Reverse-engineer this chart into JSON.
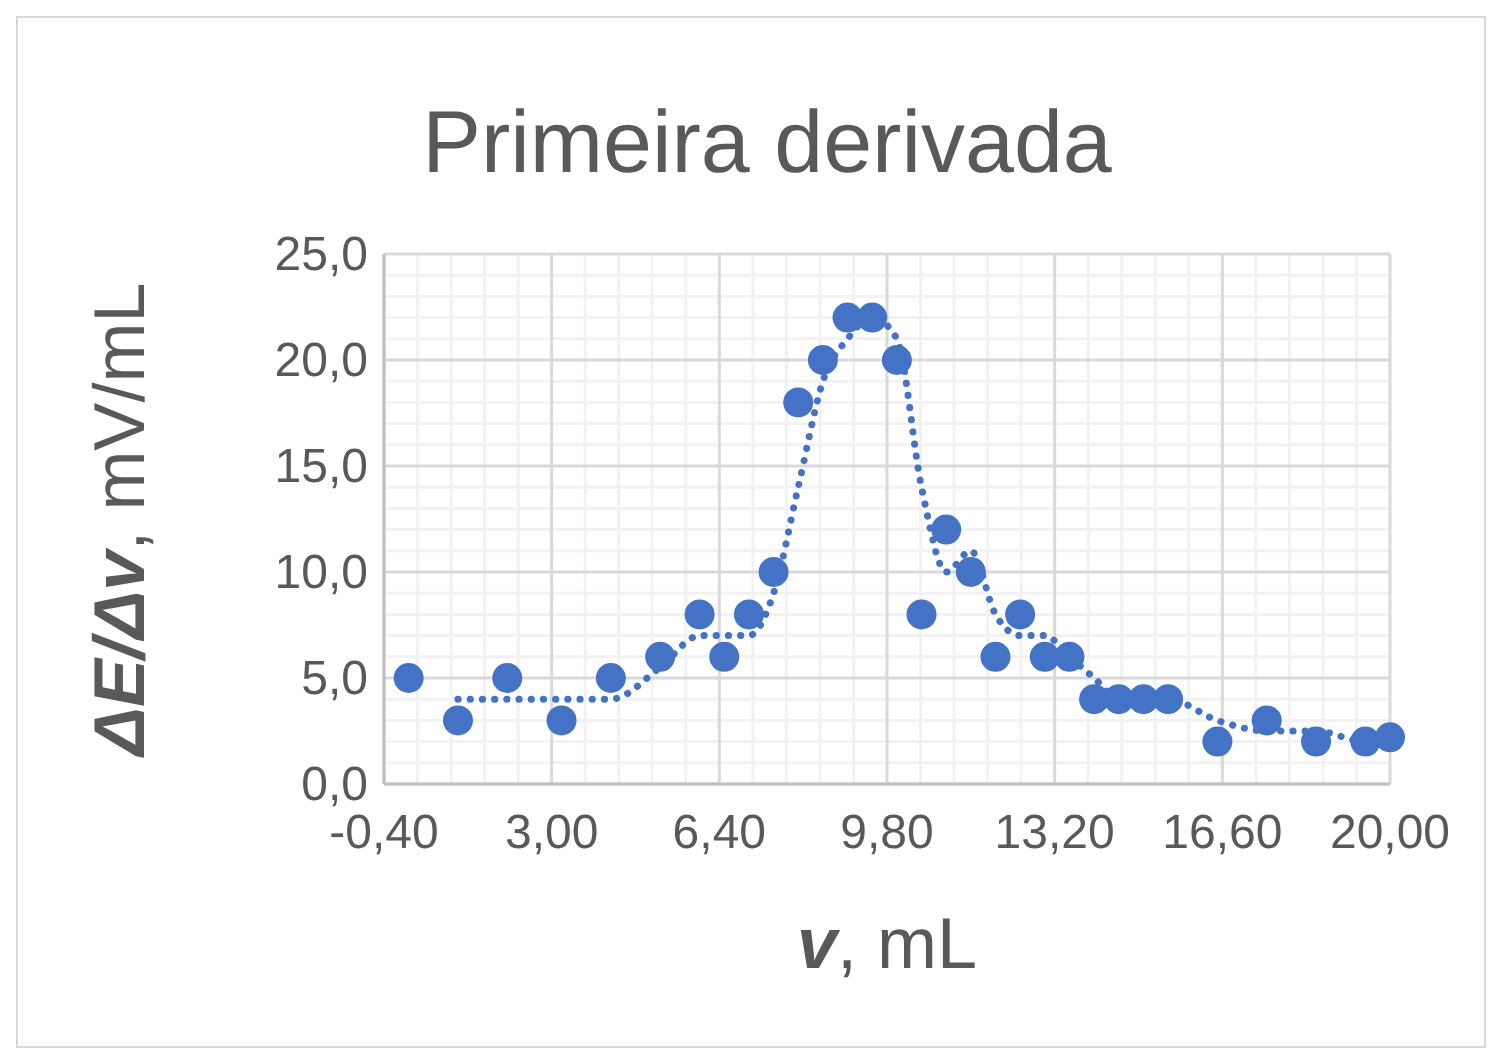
{
  "chart_data": {
    "type": "scatter",
    "title": "Primeira derivada",
    "xlabel": "v, mL",
    "ylabel": "ΔE/Δv, mV/mL",
    "xlim": [
      -0.4,
      20
    ],
    "xticks": [
      {
        "value": -0.4,
        "label": "-0,40"
      },
      {
        "value": 3,
        "label": "3,00"
      },
      {
        "value": 6.4,
        "label": "6,40"
      },
      {
        "value": 9.8,
        "label": "9,80"
      },
      {
        "value": 13.2,
        "label": "13,20"
      },
      {
        "value": 16.6,
        "label": "16,60"
      },
      {
        "value": 20,
        "label": "20,00"
      }
    ],
    "ylim": [
      0,
      25
    ],
    "yticks": [
      {
        "value": 0,
        "label": "0,0"
      },
      {
        "value": 5,
        "label": "5,0"
      },
      {
        "value": 10,
        "label": "10,0"
      },
      {
        "value": 15,
        "label": "15,0"
      },
      {
        "value": 20,
        "label": "20,0"
      },
      {
        "value": 25,
        "label": "25,0"
      }
    ],
    "grid": true,
    "series": [
      {
        "marker": "circle",
        "color": "#4472c4",
        "x": [
          0.1,
          1.1,
          2.1,
          3.2,
          4.2,
          5.2,
          6,
          6.5,
          7,
          7.5,
          8,
          8.5,
          9,
          9.5,
          10,
          10.5,
          11,
          11.5,
          12,
          12.5,
          13,
          13.5,
          14,
          14.5,
          15,
          15.5,
          16.5,
          17.5,
          18.5,
          19.5,
          20
        ],
        "values": [
          5,
          3,
          5,
          3,
          5,
          6,
          8,
          6,
          8,
          10,
          18,
          20,
          22,
          22,
          20,
          8,
          12,
          10,
          6,
          8,
          6,
          6,
          4,
          4,
          4,
          4,
          2,
          3,
          2,
          2,
          2.2
        ]
      },
      {
        "type": "line",
        "line_style": "dotted",
        "color": "#4472c4",
        "x": [
          1.1,
          2.1,
          3.2,
          4.2,
          5.2,
          6,
          6.5,
          7,
          7.5,
          8,
          8.5,
          9,
          9.5,
          10,
          10.5,
          11,
          11.5,
          12,
          12.5,
          13,
          13.5,
          14,
          14.5,
          15,
          15.5,
          16.5,
          17.5,
          18.5,
          19.5,
          20
        ],
        "values": [
          4,
          4,
          4,
          4,
          5.5,
          7,
          7,
          7,
          9,
          14,
          19,
          21,
          22,
          21,
          14,
          10,
          11,
          8,
          7,
          7,
          6,
          5,
          4,
          4,
          4,
          3,
          2.5,
          2.5,
          2,
          2.1
        ]
      }
    ]
  }
}
